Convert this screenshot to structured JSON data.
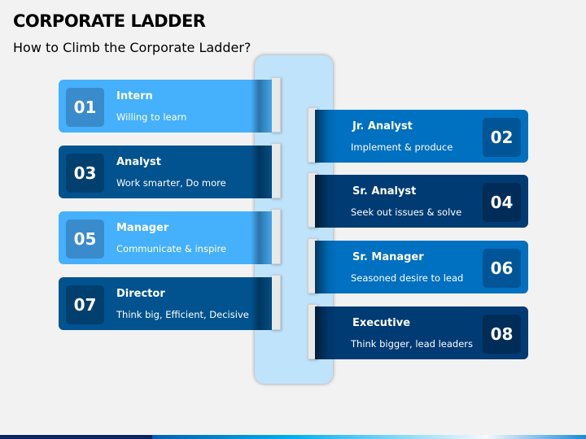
{
  "header": {
    "title": "CORPORATE LADDER",
    "subtitle": "How to Climb the Corporate Ladder?"
  },
  "colors": {
    "light_blue": "#45b0fc",
    "dark_blue": "#00538e",
    "mid_blue": "#0070c0",
    "navy": "#003b73",
    "pillar": "#bfe3fb"
  },
  "left_steps": [
    {
      "num": "01",
      "title": "Intern",
      "desc": "Willing to learn",
      "color": "#45b0fc",
      "box": "#3a8bcc"
    },
    {
      "num": "03",
      "title": "Analyst",
      "desc": "Work smarter, Do more",
      "color": "#00538e",
      "box": "#003f6e"
    },
    {
      "num": "05",
      "title": "Manager",
      "desc": "Communicate & inspire",
      "color": "#45b0fc",
      "box": "#3a8bcc"
    },
    {
      "num": "07",
      "title": "Director",
      "desc": "Think big, Efficient, Decisive",
      "color": "#00538e",
      "box": "#003f6e"
    }
  ],
  "right_steps": [
    {
      "num": "02",
      "title": "Jr. Analyst",
      "desc": "Implement & produce",
      "color": "#0070c0",
      "box": "#005596"
    },
    {
      "num": "04",
      "title": "Sr. Analyst",
      "desc": "Seek out issues & solve",
      "color": "#003b73",
      "box": "#002c58"
    },
    {
      "num": "06",
      "title": "Sr. Manager",
      "desc": "Seasoned desire to lead",
      "color": "#0070c0",
      "box": "#005596"
    },
    {
      "num": "08",
      "title": "Executive",
      "desc": "Think bigger, lead leaders",
      "color": "#003b73",
      "box": "#002c58"
    }
  ]
}
